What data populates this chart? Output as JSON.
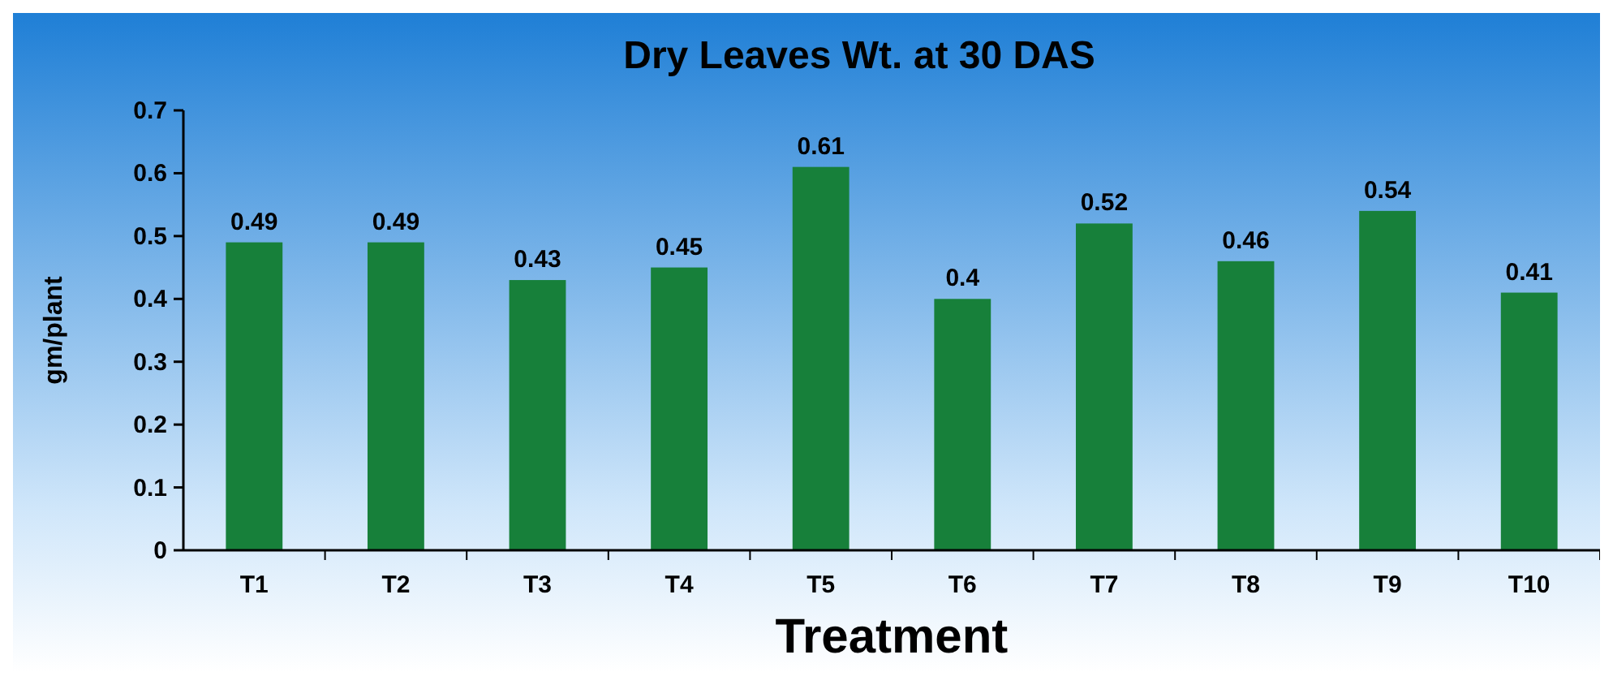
{
  "chart_data": {
    "type": "bar",
    "title": "Dry Leaves Wt. at 30 DAS",
    "xlabel": "Treatment",
    "ylabel": "gm/plant",
    "categories": [
      "T1",
      "T2",
      "T3",
      "T4",
      "T5",
      "T6",
      "T7",
      "T8",
      "T9",
      "T10"
    ],
    "values": [
      0.49,
      0.49,
      0.43,
      0.45,
      0.61,
      0.4,
      0.52,
      0.46,
      0.54,
      0.41
    ],
    "color": "#17803a",
    "ylim": [
      0,
      0.7
    ],
    "yticks": [
      0,
      0.1,
      0.2,
      0.3,
      0.4,
      0.5,
      0.6,
      0.7
    ],
    "data_labels": true,
    "grid": false
  }
}
